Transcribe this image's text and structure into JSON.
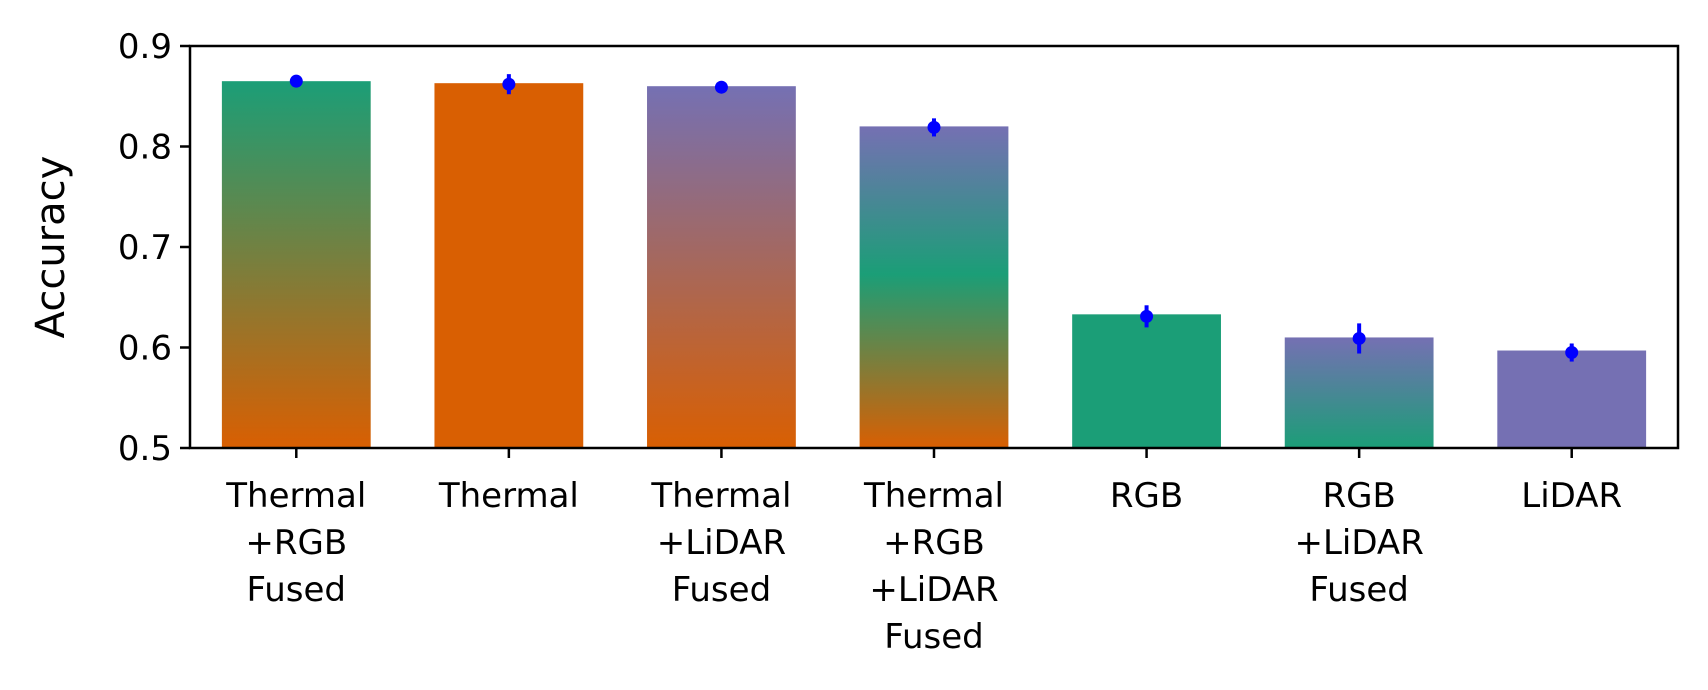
{
  "chart_data": {
    "type": "bar",
    "title": "",
    "xlabel": "",
    "ylabel": "Accuracy",
    "ylim": [
      0.5,
      0.9
    ],
    "yticks": [
      "0.5",
      "0.6",
      "0.7",
      "0.8",
      "0.9"
    ],
    "grid": false,
    "legend": "none",
    "error_bar_color": "#0000ff",
    "colors": {
      "Thermal": "#d95f02",
      "RGB": "#1b9e77",
      "LiDAR": "#7570b3"
    },
    "categories": [
      "Thermal\n+RGB\nFused",
      "Thermal",
      "Thermal\n+LiDAR\nFused",
      "Thermal\n+RGB\n+LiDAR\nFused",
      "RGB",
      "RGB\n+LiDAR\nFused",
      "LiDAR"
    ],
    "values": [
      0.865,
      0.863,
      0.86,
      0.82,
      0.633,
      0.61,
      0.597
    ],
    "means": [
      0.865,
      0.862,
      0.859,
      0.819,
      0.631,
      0.609,
      0.595
    ],
    "errors": [
      0.003,
      0.01,
      0.005,
      0.009,
      0.011,
      0.015,
      0.009
    ],
    "gradients": [
      [
        "#1b9e77",
        "#d95f02"
      ],
      [
        "#d95f02",
        "#d95f02"
      ],
      [
        "#7570b3",
        "#d95f02"
      ],
      [
        "#7570b3",
        "#1b9e77",
        "#d95f02"
      ],
      [
        "#1b9e77",
        "#1b9e77"
      ],
      [
        "#7570b3",
        "#1b9e77"
      ],
      [
        "#7570b3",
        "#7570b3"
      ]
    ]
  }
}
